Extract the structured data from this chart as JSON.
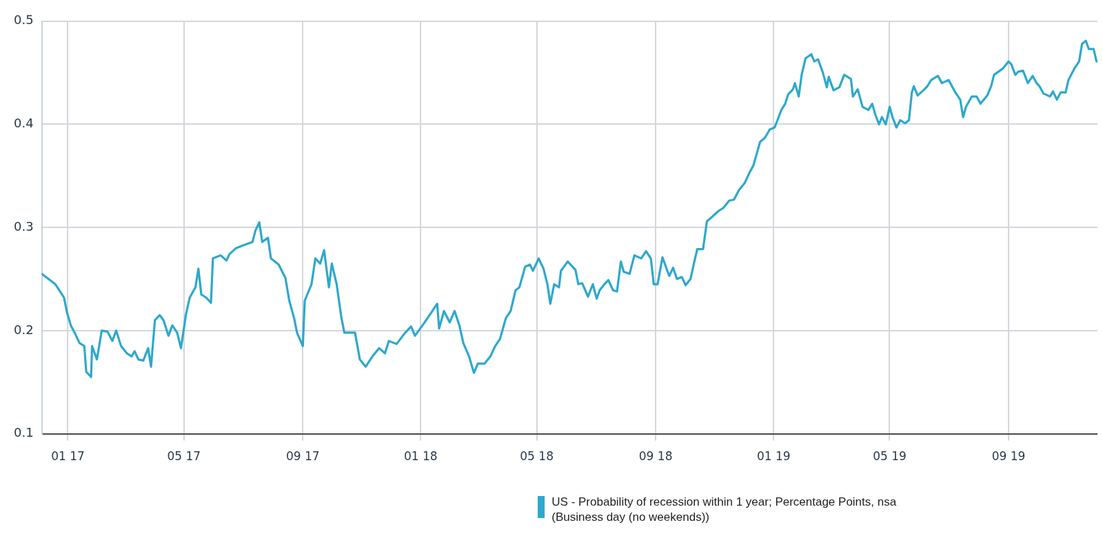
{
  "chart_data": {
    "type": "line",
    "x": [
      "2016-12-05",
      "2016-12-12",
      "2016-12-19",
      "2016-12-28",
      "2016-12-31",
      "2017-01-04",
      "2017-01-08",
      "2017-01-13",
      "2017-01-18",
      "2017-01-20",
      "2017-01-25",
      "2017-01-26",
      "2017-01-31",
      "2017-02-05",
      "2017-02-11",
      "2017-02-16",
      "2017-02-20",
      "2017-02-25",
      "2017-03-03",
      "2017-03-08",
      "2017-03-11",
      "2017-03-15",
      "2017-03-20",
      "2017-03-25",
      "2017-03-28",
      "2017-04-01",
      "2017-04-06",
      "2017-04-10",
      "2017-04-15",
      "2017-04-19",
      "2017-04-24",
      "2017-04-28",
      "2017-05-03",
      "2017-05-07",
      "2017-05-13",
      "2017-05-16",
      "2017-05-19",
      "2017-05-24",
      "2017-05-29",
      "2017-05-31",
      "2017-06-08",
      "2017-06-14",
      "2017-06-17",
      "2017-06-24",
      "2017-07-02",
      "2017-07-11",
      "2017-07-14",
      "2017-07-18",
      "2017-07-21",
      "2017-07-27",
      "2017-07-30",
      "2017-08-07",
      "2017-08-14",
      "2017-08-18",
      "2017-08-23",
      "2017-08-26",
      "2017-09-01",
      "2017-09-03",
      "2017-09-10",
      "2017-09-14",
      "2017-09-19",
      "2017-09-23",
      "2017-09-28",
      "2017-10-01",
      "2017-10-06",
      "2017-10-11",
      "2017-10-14",
      "2017-10-25",
      "2017-10-30",
      "2017-11-05",
      "2017-11-12",
      "2017-11-19",
      "2017-11-25",
      "2017-11-29",
      "2017-12-07",
      "2017-12-15",
      "2017-12-22",
      "2017-12-26",
      "2018-01-02",
      "2018-01-05",
      "2018-01-13",
      "2018-01-18",
      "2018-01-20",
      "2018-01-25",
      "2018-01-31",
      "2018-02-05",
      "2018-02-10",
      "2018-02-14",
      "2018-02-20",
      "2018-02-25",
      "2018-03-01",
      "2018-03-08",
      "2018-03-14",
      "2018-03-19",
      "2018-03-24",
      "2018-03-30",
      "2018-04-04",
      "2018-04-09",
      "2018-04-13",
      "2018-04-19",
      "2018-04-24",
      "2018-04-27",
      "2018-05-03",
      "2018-05-08",
      "2018-05-12",
      "2018-05-15",
      "2018-05-19",
      "2018-05-24",
      "2018-05-26",
      "2018-06-02",
      "2018-06-10",
      "2018-06-13",
      "2018-06-17",
      "2018-06-23",
      "2018-06-28",
      "2018-07-02",
      "2018-07-05",
      "2018-07-10",
      "2018-07-14",
      "2018-07-19",
      "2018-07-23",
      "2018-07-27",
      "2018-07-30",
      "2018-08-05",
      "2018-08-10",
      "2018-08-17",
      "2018-08-22",
      "2018-08-27",
      "2018-08-30",
      "2018-09-03",
      "2018-09-08",
      "2018-09-15",
      "2018-09-19",
      "2018-09-23",
      "2018-09-28",
      "2018-10-02",
      "2018-10-07",
      "2018-10-11",
      "2018-10-14",
      "2018-10-20",
      "2018-10-24",
      "2018-10-29",
      "2018-11-05",
      "2018-11-10",
      "2018-11-16",
      "2018-11-21",
      "2018-11-26",
      "2018-12-02",
      "2018-12-07",
      "2018-12-11",
      "2018-12-15",
      "2018-12-18",
      "2018-12-23",
      "2018-12-28",
      "2019-01-02",
      "2019-01-05",
      "2019-01-09",
      "2019-01-13",
      "2019-01-16",
      "2019-01-21",
      "2019-01-23",
      "2019-01-27",
      "2019-01-30",
      "2019-02-03",
      "2019-02-09",
      "2019-02-12",
      "2019-02-16",
      "2019-02-21",
      "2019-02-25",
      "2019-02-27",
      "2019-03-04",
      "2019-03-10",
      "2019-03-15",
      "2019-03-22",
      "2019-03-24",
      "2019-03-29",
      "2019-04-03",
      "2019-04-09",
      "2019-04-13",
      "2019-04-16",
      "2019-04-20",
      "2019-04-23",
      "2019-04-27",
      "2019-05-01",
      "2019-05-04",
      "2019-05-08",
      "2019-05-12",
      "2019-05-17",
      "2019-05-21",
      "2019-05-24",
      "2019-05-26",
      "2019-05-30",
      "2019-06-06",
      "2019-06-09",
      "2019-06-13",
      "2019-06-20",
      "2019-06-24",
      "2019-07-01",
      "2019-07-05",
      "2019-07-08",
      "2019-07-13",
      "2019-07-16",
      "2019-07-19",
      "2019-07-25",
      "2019-07-30",
      "2019-08-03",
      "2019-08-10",
      "2019-08-14",
      "2019-08-17",
      "2019-08-26",
      "2019-09-01",
      "2019-09-04",
      "2019-09-08",
      "2019-09-11",
      "2019-09-16",
      "2019-09-21",
      "2019-09-26",
      "2019-09-30",
      "2019-10-03",
      "2019-10-07",
      "2019-10-14",
      "2019-10-17",
      "2019-10-21",
      "2019-10-25",
      "2019-10-30",
      "2019-11-02",
      "2019-11-08",
      "2019-11-13",
      "2019-11-16",
      "2019-11-20",
      "2019-11-23",
      "2019-11-28",
      "2019-12-01"
    ],
    "series": [
      {
        "name": "US - Probability of recession within 1 year; Percentage Points, nsa (Business day (no weekends))",
        "color": "#2ea8cc",
        "values": [
          0.255,
          0.25,
          0.245,
          0.232,
          0.218,
          0.205,
          0.198,
          0.188,
          0.185,
          0.16,
          0.155,
          0.185,
          0.172,
          0.2,
          0.199,
          0.19,
          0.2,
          0.185,
          0.178,
          0.175,
          0.18,
          0.172,
          0.171,
          0.183,
          0.165,
          0.21,
          0.215,
          0.21,
          0.195,
          0.205,
          0.198,
          0.183,
          0.215,
          0.232,
          0.242,
          0.26,
          0.235,
          0.232,
          0.227,
          0.27,
          0.273,
          0.268,
          0.274,
          0.28,
          0.283,
          0.286,
          0.297,
          0.305,
          0.286,
          0.29,
          0.27,
          0.264,
          0.251,
          0.229,
          0.212,
          0.198,
          0.185,
          0.229,
          0.245,
          0.27,
          0.265,
          0.278,
          0.242,
          0.265,
          0.245,
          0.212,
          0.198,
          0.198,
          0.172,
          0.165,
          0.175,
          0.183,
          0.178,
          0.19,
          0.187,
          0.197,
          0.204,
          0.195,
          0.204,
          0.208,
          0.219,
          0.226,
          0.202,
          0.219,
          0.208,
          0.219,
          0.205,
          0.188,
          0.175,
          0.159,
          0.168,
          0.168,
          0.175,
          0.185,
          0.192,
          0.212,
          0.219,
          0.239,
          0.242,
          0.262,
          0.264,
          0.258,
          0.27,
          0.26,
          0.245,
          0.226,
          0.245,
          0.242,
          0.258,
          0.267,
          0.259,
          0.245,
          0.246,
          0.233,
          0.245,
          0.231,
          0.239,
          0.245,
          0.249,
          0.239,
          0.238,
          0.267,
          0.257,
          0.255,
          0.273,
          0.27,
          0.277,
          0.27,
          0.245,
          0.245,
          0.271,
          0.253,
          0.261,
          0.25,
          0.252,
          0.244,
          0.25,
          0.267,
          0.279,
          0.279,
          0.306,
          0.31,
          0.316,
          0.319,
          0.326,
          0.327,
          0.336,
          0.343,
          0.353,
          0.36,
          0.373,
          0.383,
          0.387,
          0.395,
          0.397,
          0.404,
          0.414,
          0.42,
          0.429,
          0.434,
          0.44,
          0.427,
          0.448,
          0.464,
          0.468,
          0.461,
          0.463,
          0.45,
          0.436,
          0.446,
          0.433,
          0.436,
          0.448,
          0.444,
          0.427,
          0.434,
          0.417,
          0.414,
          0.42,
          0.41,
          0.4,
          0.407,
          0.4,
          0.417,
          0.407,
          0.397,
          0.404,
          0.401,
          0.404,
          0.431,
          0.437,
          0.428,
          0.434,
          0.437,
          0.443,
          0.447,
          0.44,
          0.443,
          0.436,
          0.431,
          0.424,
          0.407,
          0.417,
          0.427,
          0.427,
          0.42,
          0.428,
          0.437,
          0.448,
          0.454,
          0.461,
          0.458,
          0.448,
          0.451,
          0.452,
          0.44,
          0.447,
          0.44,
          0.437,
          0.43,
          0.427,
          0.432,
          0.424,
          0.431,
          0.431,
          0.443,
          0.454,
          0.461,
          0.478,
          0.481,
          0.473,
          0.473,
          0.461
        ]
      }
    ],
    "xlim": [
      "2016-12-05",
      "2019-12-02"
    ],
    "xticks": [
      {
        "value": "2017-01-01",
        "label": "01 17"
      },
      {
        "value": "2017-05-01",
        "label": "05 17"
      },
      {
        "value": "2017-09-01",
        "label": "09 17"
      },
      {
        "value": "2018-01-01",
        "label": "01 18"
      },
      {
        "value": "2018-05-01",
        "label": "05 18"
      },
      {
        "value": "2018-09-01",
        "label": "09 18"
      },
      {
        "value": "2019-01-01",
        "label": "01 19"
      },
      {
        "value": "2019-05-01",
        "label": "05 19"
      },
      {
        "value": "2019-09-01",
        "label": "09 19"
      }
    ],
    "ylim": [
      0.1,
      0.5
    ],
    "yticks": [
      0.1,
      0.2,
      0.3,
      0.4,
      0.5
    ],
    "grid": true,
    "legend": "bottom",
    "marker": "none",
    "line_style": "solid"
  }
}
